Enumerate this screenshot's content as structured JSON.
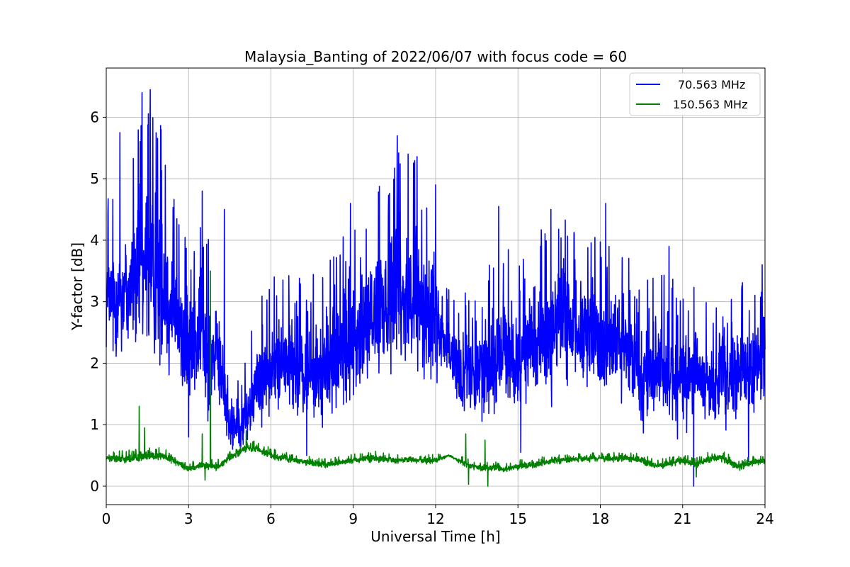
{
  "chart_data": {
    "type": "line",
    "title": "Malaysia_Banting of 2022/06/07 with focus code = 60",
    "xlabel": "Universal Time [h]",
    "ylabel": "Y-factor [dB]",
    "xlim": [
      0,
      24
    ],
    "ylim": [
      -0.3,
      6.8
    ],
    "xticks": [
      0,
      3,
      6,
      9,
      12,
      15,
      18,
      21,
      24
    ],
    "yticks": [
      0,
      1,
      2,
      3,
      4,
      5,
      6
    ],
    "grid": true,
    "legend_position": "top-right",
    "series": [
      {
        "name": "70.563 MHz",
        "color": "#0000ff",
        "x": [
          0,
          0.5,
          1,
          1.5,
          2,
          2.5,
          3,
          3.5,
          4,
          4.2,
          4.5,
          5,
          5.5,
          6,
          6.5,
          7,
          7.5,
          8,
          8.5,
          9,
          9.5,
          10,
          10.5,
          11,
          11.5,
          12,
          12.3,
          12.5,
          13,
          13.5,
          14,
          14.5,
          15,
          15.5,
          16,
          16.5,
          17,
          17.5,
          18,
          18.5,
          19,
          19.5,
          20,
          20.5,
          21,
          21.5,
          22,
          22.5,
          23,
          23.5,
          24
        ],
        "center": [
          3.0,
          3.1,
          3.3,
          3.6,
          3.4,
          2.7,
          2.3,
          2.3,
          2.1,
          1.8,
          1.0,
          1.0,
          1.7,
          1.9,
          2.0,
          1.8,
          1.8,
          1.9,
          2.1,
          2.4,
          2.6,
          2.9,
          3.2,
          3.1,
          2.9,
          2.7,
          2.3,
          2.2,
          1.8,
          1.8,
          2.0,
          2.2,
          2.1,
          2.3,
          2.4,
          2.7,
          2.6,
          2.4,
          2.4,
          2.3,
          2.2,
          1.8,
          1.9,
          1.8,
          1.7,
          1.8,
          1.7,
          1.7,
          1.8,
          1.9,
          2.0
        ],
        "spread": [
          1.2,
          1.3,
          1.6,
          1.9,
          1.8,
          1.4,
          1.2,
          1.3,
          1.2,
          1.0,
          0.5,
          0.6,
          0.9,
          1.0,
          1.1,
          1.1,
          1.1,
          1.2,
          1.3,
          1.4,
          1.5,
          1.6,
          1.7,
          1.6,
          1.6,
          1.3,
          0.5,
          0.8,
          0.9,
          0.9,
          1.1,
          1.2,
          1.1,
          1.2,
          1.3,
          1.3,
          1.2,
          1.2,
          1.2,
          1.2,
          1.1,
          1.0,
          1.1,
          1.1,
          1.0,
          1.1,
          1.0,
          1.0,
          1.0,
          1.0,
          1.0
        ],
        "peaks": [
          [
            1.3,
            6.4
          ],
          [
            1.6,
            6.45
          ],
          [
            2.0,
            5.8
          ],
          [
            0.5,
            5.75
          ],
          [
            3.5,
            4.8
          ],
          [
            4.3,
            4.5
          ],
          [
            8.9,
            4.6
          ],
          [
            10.6,
            5.7
          ],
          [
            11.0,
            5.4
          ],
          [
            12.0,
            4.9
          ],
          [
            14.3,
            4.55
          ],
          [
            16.2,
            4.5
          ],
          [
            18.2,
            4.6
          ],
          [
            20.5,
            3.9
          ],
          [
            23.9,
            3.6
          ]
        ],
        "dips": [
          [
            3.0,
            0.8
          ],
          [
            4.6,
            0.6
          ],
          [
            7.3,
            0.5
          ],
          [
            15.1,
            0.55
          ],
          [
            21.4,
            0.0
          ],
          [
            23.4,
            0.4
          ]
        ]
      },
      {
        "name": "150.563 MHz",
        "color": "#008000",
        "x": [
          0,
          0.5,
          1,
          1.5,
          2,
          2.5,
          3,
          3.5,
          4,
          4.5,
          5,
          5.5,
          6,
          6.5,
          7,
          7.5,
          8,
          8.5,
          9,
          9.5,
          10,
          10.5,
          11,
          11.5,
          12,
          12.5,
          13,
          13.5,
          14,
          14.5,
          15,
          15.5,
          16,
          16.5,
          17,
          17.5,
          18,
          18.5,
          19,
          19.5,
          20,
          20.5,
          21,
          21.5,
          22,
          22.5,
          23,
          23.5,
          24
        ],
        "center": [
          0.45,
          0.45,
          0.45,
          0.48,
          0.5,
          0.4,
          0.28,
          0.35,
          0.3,
          0.45,
          0.6,
          0.6,
          0.5,
          0.45,
          0.42,
          0.38,
          0.35,
          0.38,
          0.42,
          0.45,
          0.45,
          0.42,
          0.43,
          0.42,
          0.42,
          0.5,
          0.38,
          0.3,
          0.3,
          0.28,
          0.32,
          0.35,
          0.38,
          0.42,
          0.43,
          0.45,
          0.45,
          0.45,
          0.45,
          0.42,
          0.32,
          0.38,
          0.42,
          0.35,
          0.45,
          0.45,
          0.32,
          0.38,
          0.42
        ],
        "spread": [
          0.08,
          0.09,
          0.1,
          0.1,
          0.09,
          0.08,
          0.08,
          0.08,
          0.08,
          0.08,
          0.09,
          0.09,
          0.08,
          0.07,
          0.07,
          0.07,
          0.07,
          0.07,
          0.07,
          0.08,
          0.08,
          0.07,
          0.07,
          0.07,
          0.07,
          0.02,
          0.07,
          0.07,
          0.07,
          0.07,
          0.07,
          0.07,
          0.07,
          0.07,
          0.07,
          0.07,
          0.07,
          0.07,
          0.07,
          0.07,
          0.08,
          0.08,
          0.08,
          0.08,
          0.08,
          0.08,
          0.08,
          0.08,
          0.08
        ],
        "peaks": [
          [
            1.2,
            1.3
          ],
          [
            1.4,
            0.95
          ],
          [
            3.8,
            3.5
          ],
          [
            3.5,
            0.85
          ],
          [
            5.1,
            0.9
          ],
          [
            13.1,
            0.85
          ],
          [
            13.8,
            0.75
          ]
        ],
        "dips": [
          [
            3.6,
            0.1
          ],
          [
            13.2,
            0.03
          ],
          [
            13.9,
            0.0
          ],
          [
            21.5,
            0.15
          ]
        ]
      }
    ]
  }
}
